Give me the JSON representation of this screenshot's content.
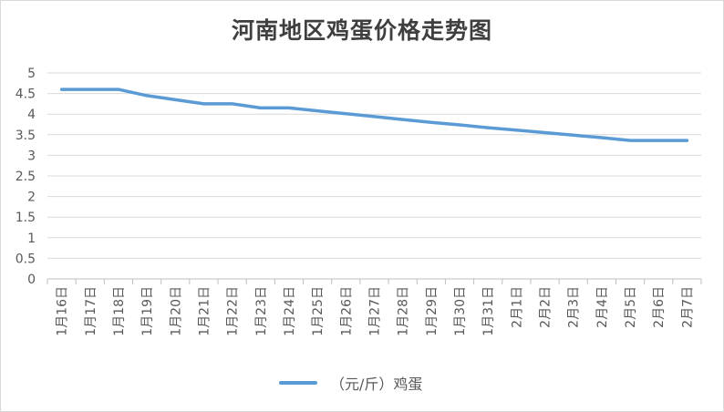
{
  "chart_data": {
    "type": "line",
    "title": "河南地区鸡蛋价格走势图",
    "categories": [
      "1月16日",
      "1月17日",
      "1月18日",
      "1月19日",
      "1月20日",
      "1月21日",
      "1月22日",
      "1月23日",
      "1月24日",
      "1月25日",
      "1月26日",
      "1月27日",
      "1月28日",
      "1月29日",
      "1月30日",
      "1月31日",
      "2月1日",
      "2月2日",
      "2月3日",
      "2月4日",
      "2月5日",
      "2月6日",
      "2月7日"
    ],
    "series": [
      {
        "name": "（元/斤）鸡蛋",
        "color": "#5b9bd5",
        "values": [
          4.6,
          4.6,
          4.6,
          4.45,
          4.35,
          4.25,
          4.25,
          4.15,
          4.15,
          4.08,
          4.01,
          3.94,
          3.87,
          3.8,
          3.74,
          3.67,
          3.61,
          3.55,
          3.49,
          3.43,
          3.36,
          3.36,
          3.36
        ]
      }
    ],
    "ylim": [
      0,
      5
    ],
    "yticks": [
      "0",
      "0.5",
      "1",
      "1.5",
      "2",
      "2.5",
      "3",
      "3.5",
      "4",
      "4.5",
      "5"
    ],
    "grid": true,
    "legend_position": "bottom"
  }
}
